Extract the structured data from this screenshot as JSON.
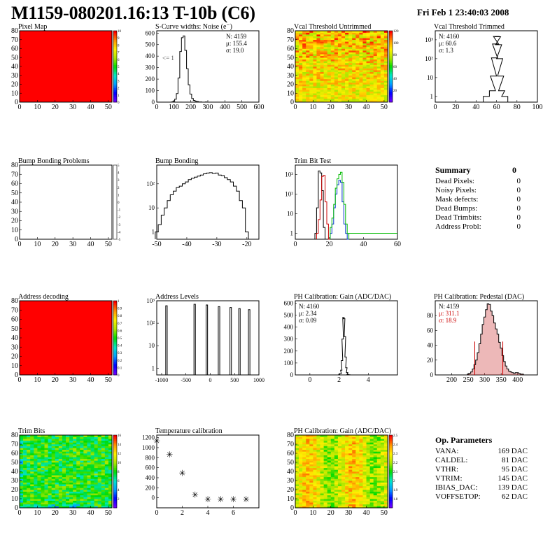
{
  "title": "M1159-080201.16:13 T-10b (C6)",
  "date": "Fri Feb  1 23:40:03 2008",
  "colors": {
    "hist_line": "#000000",
    "red_series": "#cc0000",
    "green_series": "#00bb00",
    "blue_series": "#0033cc",
    "pedestal_fill": "#cc3333",
    "heat_low": "#6600ff",
    "heat_high": "#ff0000"
  },
  "chart_data": [
    {
      "id": "pixel-map",
      "type": "heatmap",
      "title": "Pixel Map",
      "xlim": [
        0,
        52
      ],
      "ylim": [
        0,
        80
      ],
      "xticks": [
        0,
        10,
        20,
        30,
        40,
        50
      ],
      "yticks": [
        0,
        10,
        20,
        30,
        40,
        50,
        60,
        70,
        80
      ],
      "uniform_value": 10,
      "zlim": [
        0,
        10
      ],
      "zticks": [
        "0",
        "1",
        "2",
        "3",
        "4",
        "5",
        "6",
        "7",
        "8",
        "9",
        "10"
      ]
    },
    {
      "id": "scurve",
      "type": "histogram",
      "title": "S-Curve widths: Noise (e⁻)",
      "xlim": [
        0,
        600
      ],
      "ylim": [
        0,
        620
      ],
      "log": false,
      "xticks": [
        "0",
        "100",
        "200",
        "300",
        "400",
        "500",
        "600"
      ],
      "yticks": [
        "0",
        "100",
        "200",
        "300",
        "400",
        "500",
        "600"
      ],
      "stats": [
        "N: 4159",
        "μ: 155.4",
        "σ: 19.0"
      ],
      "annotation": "<= 1",
      "x": [
        80,
        90,
        100,
        110,
        120,
        130,
        140,
        150,
        160,
        170,
        180,
        190,
        200,
        210,
        220,
        230,
        240,
        250,
        260,
        270,
        280,
        290,
        300
      ],
      "values": [
        0,
        2,
        8,
        25,
        75,
        210,
        440,
        560,
        575,
        450,
        290,
        150,
        70,
        32,
        15,
        8,
        4,
        2,
        1,
        0,
        0,
        1,
        0
      ]
    },
    {
      "id": "vcal-untrimmed",
      "type": "heatmap",
      "title": "Vcal Threshold Untrimmed",
      "xlim": [
        0,
        52
      ],
      "ylim": [
        0,
        80
      ],
      "xticks": [
        0,
        10,
        20,
        30,
        40,
        50
      ],
      "yticks": [
        0,
        10,
        20,
        30,
        40,
        50,
        60,
        70,
        80
      ],
      "zlim": [
        0,
        130
      ],
      "zticks": [
        "",
        "20",
        "40",
        "60",
        "80",
        "100",
        "120"
      ],
      "value_range": [
        80,
        125
      ]
    },
    {
      "id": "vcal-trimmed",
      "type": "histogram",
      "title": "Vcal Threshold Trimmed",
      "xlim": [
        0,
        100
      ],
      "ylim": [
        0.5,
        3000
      ],
      "log": true,
      "xticks": [
        "0",
        "20",
        "40",
        "60",
        "80",
        "100"
      ],
      "yticks": [
        "1",
        "10",
        "10²",
        "10³"
      ],
      "stats": [
        "N: 4160",
        "μ: 60.6",
        "σ:  1.3"
      ],
      "x": [
        50,
        56,
        57,
        58,
        59,
        60,
        61,
        62,
        63,
        64,
        65,
        68
      ],
      "values": [
        1,
        2,
        12,
        110,
        600,
        1500,
        1450,
        550,
        100,
        12,
        2,
        1
      ]
    },
    {
      "id": "bump-problems",
      "type": "heatmap",
      "title": "Bump Bonding Problems",
      "xlim": [
        0,
        52
      ],
      "ylim": [
        0,
        80
      ],
      "xticks": [
        0,
        10,
        20,
        30,
        40,
        50
      ],
      "yticks": [
        0,
        10,
        20,
        30,
        40,
        50,
        60,
        70,
        80
      ],
      "zlim": [
        -5,
        5
      ],
      "zticks": [
        "-5",
        "-4",
        "-3",
        "-2",
        "-1",
        "0",
        "1",
        "2",
        "3",
        "4",
        "5"
      ],
      "empty": true
    },
    {
      "id": "bump-bonding",
      "type": "histogram",
      "title": "Bump Bonding",
      "xlim": [
        -50,
        -16
      ],
      "ylim": [
        0.5,
        600
      ],
      "log": true,
      "xticks": [
        "-50",
        "-40",
        "-30",
        "-20"
      ],
      "yticks": [
        "1",
        "10",
        "10²"
      ],
      "x": [
        -50,
        -49,
        -48,
        -47,
        -46,
        -45,
        -44,
        -43,
        -42,
        -41,
        -40,
        -39,
        -38,
        -37,
        -36,
        -35,
        -34,
        -33,
        -32,
        -31,
        -30,
        -29,
        -28,
        -27,
        -26,
        -25,
        -24,
        -23,
        -22,
        -21,
        -20,
        -19
      ],
      "values": [
        1,
        2,
        5,
        10,
        20,
        35,
        50,
        70,
        80,
        100,
        120,
        150,
        170,
        190,
        210,
        230,
        260,
        280,
        290,
        270,
        280,
        230,
        220,
        180,
        150,
        120,
        80,
        50,
        20,
        10,
        1,
        0
      ]
    },
    {
      "id": "trim-bit-test",
      "type": "histogram",
      "title": "Trim Bit Test",
      "xlim": [
        0,
        60
      ],
      "ylim": [
        0.5,
        3000
      ],
      "log": true,
      "xticks": [
        "0",
        "20",
        "40",
        "60"
      ],
      "yticks": [
        "1",
        "10",
        "10²",
        "10³"
      ],
      "series": [
        {
          "color": "#000000",
          "x": [
            12,
            13,
            14,
            15,
            16,
            17,
            18
          ],
          "values": [
            1,
            20,
            1500,
            1200,
            150,
            2,
            0
          ]
        },
        {
          "color": "#cc0000",
          "x": [
            13,
            14,
            15,
            16,
            17,
            18,
            19,
            20
          ],
          "values": [
            1,
            5,
            50,
            800,
            900,
            40,
            3,
            0
          ]
        },
        {
          "color": "#0033cc",
          "x": [
            21,
            22,
            23,
            24,
            25,
            26,
            27,
            28,
            29,
            30,
            31
          ],
          "values": [
            1,
            3,
            20,
            100,
            300,
            500,
            400,
            40,
            3,
            1,
            0
          ]
        },
        {
          "color": "#00bb00",
          "x": [
            21,
            22,
            23,
            24,
            25,
            26,
            27,
            28,
            29,
            30,
            31,
            60
          ],
          "values": [
            2,
            6,
            30,
            200,
            600,
            1000,
            1300,
            400,
            30,
            3,
            1,
            1
          ]
        }
      ]
    },
    {
      "id": "address-decoding",
      "type": "heatmap",
      "title": "Address decoding",
      "xlim": [
        0,
        52
      ],
      "ylim": [
        0,
        80
      ],
      "xticks": [
        0,
        10,
        20,
        30,
        40,
        50
      ],
      "yticks": [
        0,
        10,
        20,
        30,
        40,
        50,
        60,
        70,
        80
      ],
      "uniform_value": 1,
      "zlim": [
        0,
        1
      ],
      "zticks": [
        "0",
        "0.1",
        "0.2",
        "0.3",
        "0.4",
        "0.5",
        "0.6",
        "0.7",
        "0.8",
        "0.9",
        "1"
      ]
    },
    {
      "id": "address-levels",
      "type": "histogram",
      "title": "Address Levels",
      "xlim": [
        -1100,
        1000
      ],
      "ylim": [
        0.5,
        1000
      ],
      "log": true,
      "xticks": [
        "-1000",
        "-500",
        "0",
        "500",
        "1000"
      ],
      "yticks": [
        "1",
        "10",
        "10²",
        "10³"
      ],
      "peaks": [
        {
          "x": -900,
          "v": 600
        },
        {
          "x": -320,
          "v": 700
        },
        {
          "x": -70,
          "v": 650
        },
        {
          "x": 180,
          "v": 550
        },
        {
          "x": 420,
          "v": 500
        },
        {
          "x": 600,
          "v": 450
        },
        {
          "x": 800,
          "v": 400
        }
      ]
    },
    {
      "id": "ph-gain",
      "type": "histogram",
      "title": "PH Calibration: Gain (ADC/DAC)",
      "xlim": [
        -1,
        6
      ],
      "ylim": [
        0,
        620
      ],
      "log": false,
      "xticks": [
        "0",
        "2",
        "4"
      ],
      "yticks": [
        "0",
        "100",
        "200",
        "300",
        "400",
        "500",
        "600"
      ],
      "stats": [
        "N: 4160",
        "μ: 2.34",
        "σ: 0.09"
      ],
      "x": [
        2.0,
        2.1,
        2.15,
        2.2,
        2.25,
        2.3,
        2.35,
        2.4,
        2.45,
        2.5,
        2.55,
        2.6,
        2.7
      ],
      "values": [
        2,
        10,
        40,
        120,
        300,
        480,
        470,
        320,
        150,
        60,
        20,
        5,
        1
      ]
    },
    {
      "id": "ph-pedestal",
      "type": "histogram",
      "title": "PH Calibration: Pedestal (DAC)",
      "xlim": [
        150,
        460
      ],
      "ylim": [
        0,
        100
      ],
      "log": false,
      "xticks": [
        "200",
        "250",
        "300",
        "350",
        "400"
      ],
      "yticks": [
        "0",
        "20",
        "40",
        "60",
        "80"
      ],
      "stats": [
        "N: 4159",
        "μ: 311.1",
        "σ: 18.9"
      ],
      "stats_colors": [
        "#000000",
        "#cc0000",
        "#cc0000"
      ],
      "cut_lines": [
        270,
        355
      ],
      "x": [
        250,
        255,
        260,
        265,
        270,
        275,
        280,
        285,
        290,
        295,
        300,
        305,
        310,
        315,
        320,
        325,
        330,
        335,
        340,
        345,
        350,
        355,
        360,
        365,
        370,
        375,
        380,
        385,
        390,
        395,
        400,
        405,
        410,
        415
      ],
      "values": [
        1,
        2,
        4,
        8,
        14,
        20,
        30,
        42,
        55,
        68,
        78,
        88,
        96,
        95,
        86,
        80,
        70,
        62,
        55,
        44,
        36,
        26,
        18,
        12,
        8,
        5,
        4,
        3,
        2,
        3,
        3,
        2,
        1,
        1
      ]
    },
    {
      "id": "trim-bits",
      "type": "heatmap",
      "title": "Trim Bits",
      "xlim": [
        0,
        52
      ],
      "ylim": [
        0,
        80
      ],
      "xticks": [
        0,
        10,
        20,
        30,
        40,
        50
      ],
      "yticks": [
        0,
        10,
        20,
        30,
        40,
        50,
        60,
        70,
        80
      ],
      "zlim": [
        0,
        16
      ],
      "zticks": [
        "",
        "2",
        "4",
        "6",
        "8",
        "10",
        "12",
        "14",
        "16"
      ],
      "value_range": [
        5,
        10
      ]
    },
    {
      "id": "temperature-calibration",
      "type": "scatter",
      "title": "Temperature calibration",
      "xlim": [
        0,
        8
      ],
      "ylim": [
        -200,
        1250
      ],
      "xticks": [
        "0",
        "2",
        "4",
        "6"
      ],
      "yticks": [
        "0",
        "200",
        "400",
        "600",
        "800",
        "1000",
        "1200"
      ],
      "x": [
        0,
        1,
        2,
        3,
        4,
        5,
        6,
        7
      ],
      "values": [
        1130,
        860,
        490,
        60,
        -30,
        -30,
        -30,
        -30
      ]
    },
    {
      "id": "ph-gain-map",
      "type": "heatmap",
      "title": "PH Calibration: Gain (ADC/DAC)",
      "xlim": [
        0,
        52
      ],
      "ylim": [
        0,
        80
      ],
      "xticks": [
        0,
        10,
        20,
        30,
        40,
        50
      ],
      "yticks": [
        0,
        10,
        20,
        30,
        40,
        50,
        60,
        70,
        80
      ],
      "zlim": [
        1.6,
        2.6
      ],
      "zticks": [
        "",
        "1.8",
        "1.9",
        "2",
        "2.1",
        "2.2",
        "2.3",
        "2.4",
        "2.5"
      ],
      "value_range": [
        2.1,
        2.55
      ]
    }
  ],
  "summary": {
    "title": "Summary",
    "count": "0",
    "rows": [
      {
        "label": "Dead Pixels:",
        "value": "0"
      },
      {
        "label": "Noisy Pixels:",
        "value": "0"
      },
      {
        "label": "Mask defects:",
        "value": "0"
      },
      {
        "label": "Dead Bumps:",
        "value": "0"
      },
      {
        "label": "Dead Trimbits:",
        "value": "0"
      },
      {
        "label": "Address Probl:",
        "value": "0"
      }
    ]
  },
  "op_params": {
    "title": "Op. Parameters",
    "rows": [
      {
        "label": "VANA:",
        "value": "169 DAC"
      },
      {
        "label": "CALDEL:",
        "value": "81 DAC"
      },
      {
        "label": "VTHR:",
        "value": "95 DAC"
      },
      {
        "label": "VTRIM:",
        "value": "145 DAC"
      },
      {
        "label": "IBIAS_DAC:",
        "value": "139 DAC"
      },
      {
        "label": "VOFFSETOP:",
        "value": "62 DAC"
      }
    ]
  }
}
